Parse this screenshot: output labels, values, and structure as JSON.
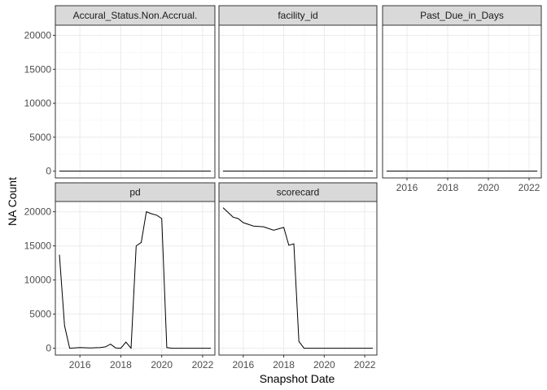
{
  "chart_data": {
    "type": "line",
    "xlabel": "Snapshot Date",
    "ylabel": "NA Count",
    "xlim": [
      2014.8,
      2022.6
    ],
    "ylim": [
      -1000,
      21500
    ],
    "x_ticks": [
      2016,
      2018,
      2020,
      2022
    ],
    "x_tick_labels": [
      "2016",
      "2018",
      "2020",
      "2022"
    ],
    "y_ticks": [
      0,
      5000,
      10000,
      15000,
      20000
    ],
    "y_tick_labels": [
      "0",
      "5000",
      "10000",
      "15000",
      "20000"
    ],
    "x_minor": [
      2015,
      2017,
      2019,
      2021
    ],
    "y_minor": [
      2500,
      7500,
      12500,
      17500
    ],
    "grid": true,
    "facets": [
      {
        "name": "Accural_Status.Non.Accrual.",
        "x": [
          2015.0,
          2022.4
        ],
        "values": [
          0,
          0
        ]
      },
      {
        "name": "facility_id",
        "x": [
          2015.0,
          2022.4
        ],
        "values": [
          0,
          0
        ]
      },
      {
        "name": "Past_Due_in_Days",
        "x": [
          2015.0,
          2022.4
        ],
        "values": [
          0,
          0
        ]
      },
      {
        "name": "pd",
        "x": [
          2015.0,
          2015.25,
          2015.5,
          2016.0,
          2016.5,
          2017.0,
          2017.25,
          2017.5,
          2017.75,
          2018.0,
          2018.25,
          2018.5,
          2018.75,
          2019.0,
          2019.25,
          2019.5,
          2019.75,
          2020.0,
          2020.25,
          2020.5,
          2021.0,
          2021.5,
          2022.0,
          2022.4
        ],
        "values": [
          13700,
          3300,
          0,
          100,
          50,
          100,
          200,
          600,
          50,
          0,
          900,
          0,
          15000,
          15500,
          20000,
          19700,
          19500,
          19000,
          100,
          0,
          0,
          0,
          0,
          0
        ]
      },
      {
        "name": "scorecard",
        "x": [
          2015.0,
          2015.5,
          2015.75,
          2016.0,
          2016.5,
          2017.0,
          2017.5,
          2018.0,
          2018.25,
          2018.5,
          2018.75,
          2019.0,
          2019.25,
          2020.0,
          2021.0,
          2022.0,
          2022.4
        ],
        "values": [
          20600,
          19200,
          19000,
          18400,
          17900,
          17800,
          17300,
          17700,
          15100,
          15300,
          1000,
          0,
          0,
          0,
          0,
          0,
          0
        ]
      }
    ]
  }
}
